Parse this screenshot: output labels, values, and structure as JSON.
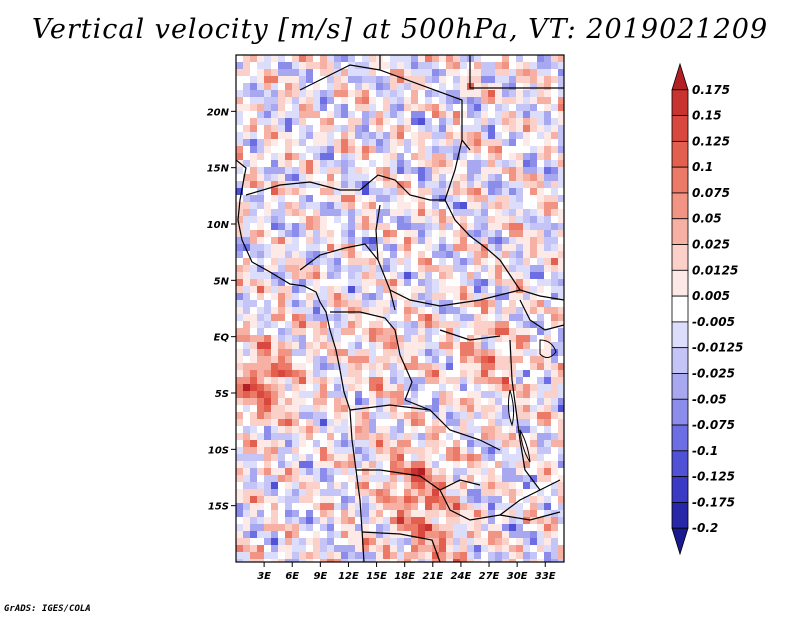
{
  "title": "Vertical velocity [m/s] at 500hPa, VT: 2019021209",
  "credit": "GrADS: IGES/COLA",
  "map": {
    "lat_range": [
      -20,
      25
    ],
    "lon_range": [
      0,
      35
    ],
    "lat_labels": [
      "20N",
      "15N",
      "10N",
      "5N",
      "EQ",
      "5S",
      "10S",
      "15S"
    ],
    "lat_values": [
      20,
      15,
      10,
      5,
      0,
      -5,
      -10,
      -15
    ],
    "lon_labels": [
      "3E",
      "6E",
      "9E",
      "12E",
      "15E",
      "18E",
      "21E",
      "24E",
      "27E",
      "30E",
      "33E"
    ],
    "lon_values": [
      3,
      6,
      9,
      12,
      15,
      18,
      21,
      24,
      27,
      30,
      33
    ]
  },
  "colorbar": {
    "labels": [
      "0.175",
      "0.15",
      "0.125",
      "0.1",
      "0.075",
      "0.05",
      "0.025",
      "0.0125",
      "0.005",
      "-0.005",
      "-0.0125",
      "-0.025",
      "-0.05",
      "-0.075",
      "-0.1",
      "-0.125",
      "-0.175",
      "-0.2"
    ],
    "colors": [
      "#b21f24",
      "#c8332f",
      "#d9483e",
      "#e4604e",
      "#ec7a68",
      "#f29484",
      "#f6b0a4",
      "#fad0c8",
      "#fde9e6",
      "#ffffff",
      "#dcdcfb",
      "#c4c4f6",
      "#a8a8f0",
      "#8c8ceb",
      "#6e6ee4",
      "#5151d6",
      "#3a3ac4",
      "#2727a8",
      "#1a1a90"
    ]
  }
}
